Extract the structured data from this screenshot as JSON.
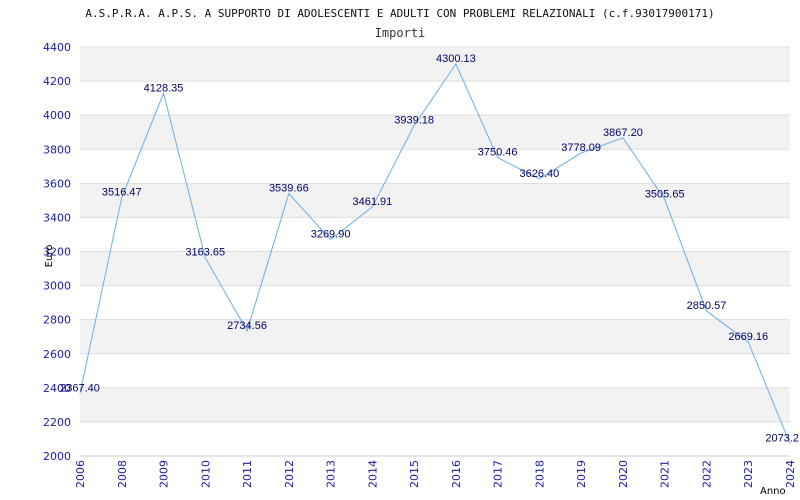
{
  "chart_data": {
    "type": "line",
    "title": "A.S.P.R.A. A.P.S. A SUPPORTO DI ADOLESCENTI E ADULTI CON PROBLEMI RELAZIONALI (c.f.93017900171)",
    "subtitle": "Importi",
    "xlabel": "Anno",
    "ylabel": "Euro",
    "categories": [
      "2006",
      "2008",
      "2009",
      "2010",
      "2011",
      "2012",
      "2013",
      "2014",
      "2015",
      "2016",
      "2017",
      "2018",
      "2019",
      "2020",
      "2021",
      "2022",
      "2023",
      "2024"
    ],
    "labels": [
      "2367.40",
      "3516.47",
      "4128.35",
      "3163.65",
      "2734.56",
      "3539.66",
      "3269.90",
      "3461.91",
      "3939.18",
      "4300.13",
      "3750.46",
      "3626.40",
      "3778.09",
      "3867.20",
      "3505.65",
      "2850.57",
      "2669.16",
      "2073.2"
    ],
    "values": [
      2367.4,
      3516.47,
      4128.35,
      3163.65,
      2734.56,
      3539.66,
      3269.9,
      3461.91,
      3939.18,
      4300.13,
      3750.46,
      3626.4,
      3778.09,
      3867.2,
      3505.65,
      2850.57,
      2669.16,
      2073.2
    ],
    "yticks": [
      "2000",
      "2200",
      "2400",
      "2600",
      "2800",
      "3000",
      "3200",
      "3400",
      "3600",
      "3800",
      "4000",
      "4200",
      "4400"
    ],
    "ylim": [
      2000,
      4400
    ],
    "grid": true,
    "line_color": "#6aaee8",
    "band_color": "#f2f2f2",
    "tick_color": "#1a1aa6"
  }
}
